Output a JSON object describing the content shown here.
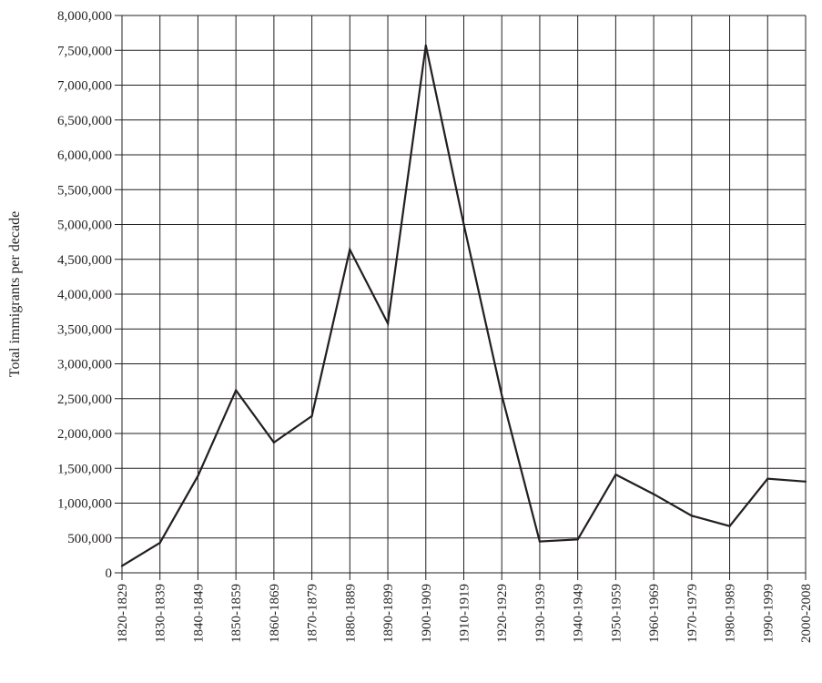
{
  "chart_data": {
    "type": "line",
    "title": "",
    "xlabel": "",
    "ylabel": "Total immigrants per decade",
    "categories": [
      "1820-1829",
      "1830-1839",
      "1840-1849",
      "1850-1859",
      "1860-1869",
      "1870-1879",
      "1880-1889",
      "1890-1899",
      "1900-1909",
      "1910-1919",
      "1920-1929",
      "1930-1939",
      "1940-1949",
      "1950-1959",
      "1960-1969",
      "1970-1979",
      "1980-1989",
      "1990-1999",
      "2000-2008"
    ],
    "series": [
      {
        "values": [
          100000,
          430000,
          1390000,
          2620000,
          1870000,
          2250000,
          4640000,
          3580000,
          7570000,
          5000000,
          2550000,
          450000,
          480000,
          1410000,
          1130000,
          820000,
          670000,
          1350000,
          1310000
        ]
      }
    ],
    "ylim": [
      0,
      8000000
    ],
    "yticks": [
      0,
      500000,
      1000000,
      1500000,
      2000000,
      2500000,
      3000000,
      3500000,
      4000000,
      4500000,
      5000000,
      5500000,
      6000000,
      6500000,
      7000000,
      7500000,
      8000000
    ],
    "ytick_labels": [
      "0",
      "500,000",
      "1,000,000",
      "1,500,000",
      "2,000,000",
      "2,500,000",
      "3,000,000",
      "3,500,000",
      "4,000,000",
      "4,500,000",
      "5,000,000",
      "5,500,000",
      "6,000,000",
      "6,500,000",
      "7,000,000",
      "7,500,000",
      "8,000,000"
    ],
    "grid": true,
    "line_color": "#231f20",
    "grid_color": "#231f20"
  }
}
